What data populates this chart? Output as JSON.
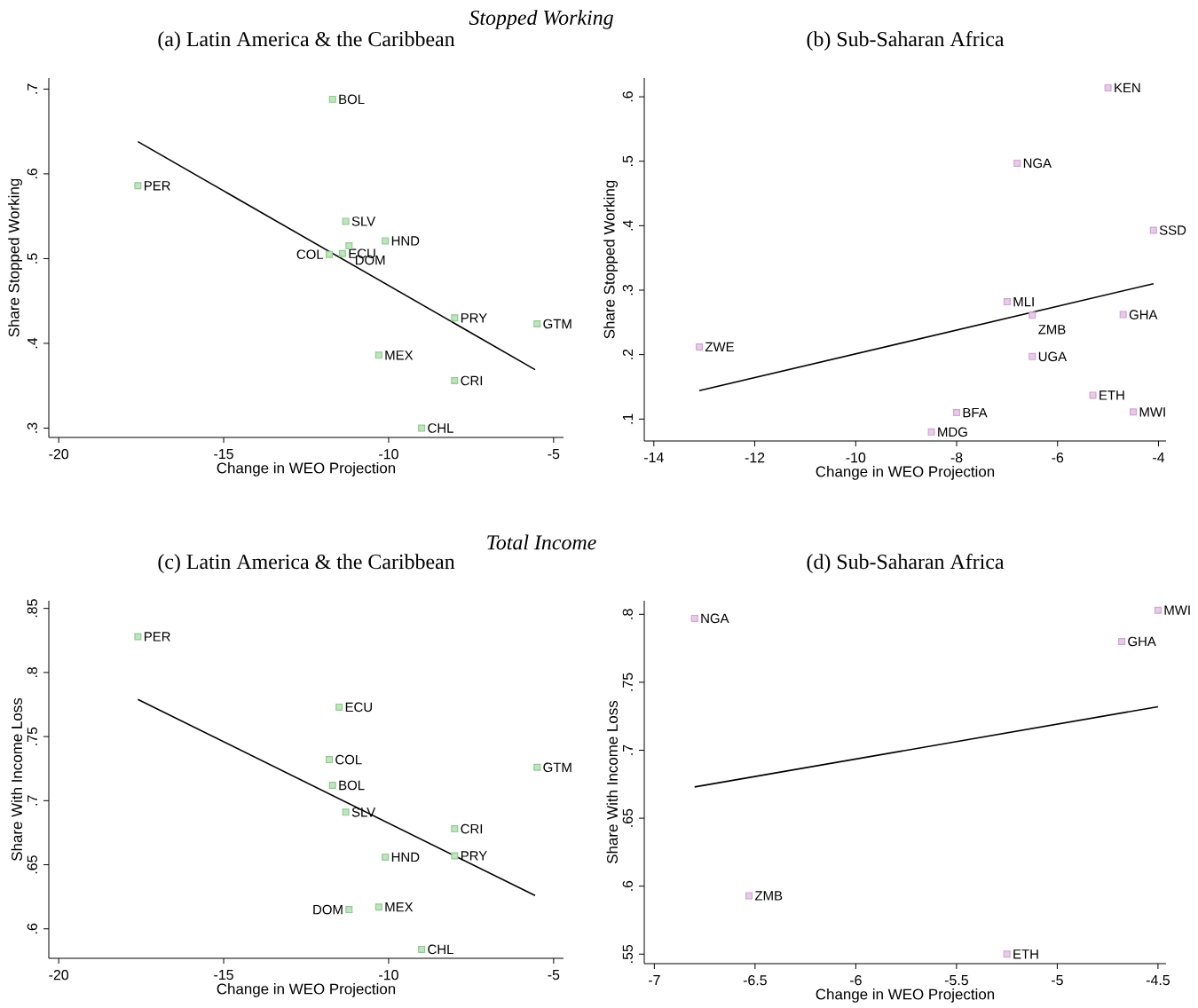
{
  "chart_data": [
    {
      "type": "scatter",
      "title": "(a) Latin America & the Caribbean",
      "xlabel": "Change in WEO Projection",
      "ylabel": "Share Stopped Working",
      "xlim": [
        -20.3,
        -4.7
      ],
      "ylim": [
        0.289,
        0.713
      ],
      "xticks": [
        -20,
        -15,
        -10,
        -5
      ],
      "yticks": [
        {
          "value": 0.3,
          "label": ".3"
        },
        {
          "value": 0.4,
          "label": ".4"
        },
        {
          "value": 0.5,
          "label": ".5"
        },
        {
          "value": 0.6,
          "label": ".6"
        },
        {
          "value": 0.7,
          "label": ".7"
        }
      ],
      "series": [
        {
          "marker": "square",
          "color": "#8fcc8f",
          "x": [
            -11.7,
            -17.6,
            -11.3,
            -11.2,
            -10.1,
            -11.8,
            -11.4,
            -8.0,
            -5.5,
            -10.3,
            -8.0,
            -9.0
          ],
          "values": [
            0.688,
            0.586,
            0.544,
            0.515,
            0.521,
            0.505,
            0.506,
            0.43,
            0.423,
            0.386,
            0.356,
            0.3
          ]
        },
        {
          "type": "line",
          "color": "#000000",
          "x": [
            -17.6,
            -5.56
          ],
          "values": [
            0.638,
            0.369
          ]
        }
      ],
      "annotations": [
        "Stopped Working",
        {
          "text": "BOL",
          "x": -11.7,
          "y": 0.688
        },
        {
          "text": "PER",
          "x": -17.6,
          "y": 0.586
        },
        {
          "text": "SLV",
          "x": -11.3,
          "y": 0.544
        },
        {
          "text": "DOM",
          "x": -11.2,
          "y": 0.515
        },
        {
          "text": "HND",
          "x": -10.1,
          "y": 0.521
        },
        {
          "text": "COL",
          "x": -11.8,
          "y": 0.505
        },
        {
          "text": "ECU",
          "x": -11.4,
          "y": 0.506
        },
        {
          "text": "PRY",
          "x": -8.0,
          "y": 0.43
        },
        {
          "text": "GTM",
          "x": -5.5,
          "y": 0.423
        },
        {
          "text": "MEX",
          "x": -10.3,
          "y": 0.386
        },
        {
          "text": "CRI",
          "x": -8.0,
          "y": 0.356
        },
        {
          "text": "CHL",
          "x": -9.0,
          "y": 0.3
        }
      ]
    },
    {
      "type": "scatter",
      "title": "(b) Sub-Saharan Africa",
      "xlabel": "Change in WEO Projection",
      "ylabel": "Share Stopped Working",
      "xlim": [
        -14.19,
        -3.85
      ],
      "ylim": [
        0.066,
        0.629
      ],
      "xticks": [
        -14,
        -12,
        -10,
        -8,
        -6,
        -4
      ],
      "yticks": [
        {
          "value": 0.1,
          "label": ".1"
        },
        {
          "value": 0.2,
          "label": ".2"
        },
        {
          "value": 0.3,
          "label": ".3"
        },
        {
          "value": 0.4,
          "label": ".4"
        },
        {
          "value": 0.5,
          "label": ".5"
        },
        {
          "value": 0.6,
          "label": ".6"
        }
      ],
      "series": [
        {
          "marker": "square",
          "color": "#d3a3d3",
          "x": [
            -5.0,
            -6.8,
            -4.1,
            -7.0,
            -6.5,
            -4.7,
            -13.1,
            -6.5,
            -5.3,
            -8.0,
            -4.5,
            -8.5
          ],
          "values": [
            0.614,
            0.497,
            0.393,
            0.282,
            0.261,
            0.262,
            0.212,
            0.197,
            0.137,
            0.11,
            0.111,
            0.08
          ]
        },
        {
          "type": "line",
          "color": "#000000",
          "x": [
            -13.1,
            -4.1
          ],
          "values": [
            0.144,
            0.31
          ]
        }
      ],
      "annotations": [
        {
          "text": "KEN",
          "x": -5.0,
          "y": 0.614
        },
        {
          "text": "NGA",
          "x": -6.8,
          "y": 0.497
        },
        {
          "text": "SSD",
          "x": -4.1,
          "y": 0.393
        },
        {
          "text": "MLI",
          "x": -7.0,
          "y": 0.282
        },
        {
          "text": "ZMB",
          "x": -6.5,
          "y": 0.261
        },
        {
          "text": "GHA",
          "x": -4.7,
          "y": 0.262
        },
        {
          "text": "ZWE",
          "x": -13.1,
          "y": 0.212
        },
        {
          "text": "UGA",
          "x": -6.5,
          "y": 0.197
        },
        {
          "text": "ETH",
          "x": -5.3,
          "y": 0.137
        },
        {
          "text": "BFA",
          "x": -8.0,
          "y": 0.11
        },
        {
          "text": "MWI",
          "x": -4.5,
          "y": 0.111
        },
        {
          "text": "MDG",
          "x": -8.5,
          "y": 0.08
        }
      ]
    },
    {
      "type": "scatter",
      "title": "(c) Latin America & the Caribbean",
      "xlabel": "Change in WEO Projection",
      "ylabel": "Share With Income Loss",
      "xlim": [
        -20.3,
        -4.7
      ],
      "ylim": [
        0.577,
        0.856
      ],
      "xticks": [
        -20,
        -15,
        -10,
        -5
      ],
      "yticks": [
        {
          "value": 0.6,
          "label": ".6"
        },
        {
          "value": 0.65,
          "label": ".65"
        },
        {
          "value": 0.7,
          "label": ".7"
        },
        {
          "value": 0.75,
          "label": ".75"
        },
        {
          "value": 0.8,
          "label": ".8"
        },
        {
          "value": 0.85,
          "label": ".85"
        }
      ],
      "series": [
        {
          "marker": "square",
          "color": "#8fcc8f",
          "x": [
            -17.6,
            -11.5,
            -11.8,
            -11.7,
            -11.3,
            -5.5,
            -8.0,
            -10.1,
            -8.0,
            -11.2,
            -10.3,
            -9.0
          ],
          "values": [
            0.828,
            0.773,
            0.732,
            0.712,
            0.691,
            0.726,
            0.678,
            0.656,
            0.657,
            0.615,
            0.617,
            0.584
          ]
        },
        {
          "type": "line",
          "color": "#000000",
          "x": [
            -17.6,
            -5.56
          ],
          "values": [
            0.779,
            0.626
          ]
        }
      ],
      "annotations": [
        "Total Income",
        {
          "text": "PER",
          "x": -17.6,
          "y": 0.828
        },
        {
          "text": "ECU",
          "x": -11.5,
          "y": 0.773
        },
        {
          "text": "COL",
          "x": -11.8,
          "y": 0.732
        },
        {
          "text": "BOL",
          "x": -11.7,
          "y": 0.712
        },
        {
          "text": "SLV",
          "x": -11.3,
          "y": 0.691
        },
        {
          "text": "GTM",
          "x": -5.5,
          "y": 0.726
        },
        {
          "text": "CRI",
          "x": -8.0,
          "y": 0.678
        },
        {
          "text": "HND",
          "x": -10.1,
          "y": 0.656
        },
        {
          "text": "PRY",
          "x": -8.0,
          "y": 0.657
        },
        {
          "text": "DOM",
          "x": -11.2,
          "y": 0.615
        },
        {
          "text": "MEX",
          "x": -10.3,
          "y": 0.617
        },
        {
          "text": "CHL",
          "x": -9.0,
          "y": 0.584
        }
      ]
    },
    {
      "type": "scatter",
      "title": "(d) Sub-Saharan Africa",
      "xlabel": "Change in WEO Projection",
      "ylabel": "Share With Income Loss",
      "xlim": [
        -7.05,
        -4.46
      ],
      "ylim": [
        0.543,
        0.81
      ],
      "xticks": [
        -7,
        -6.5,
        -6,
        -5.5,
        -5,
        -4.5
      ],
      "yticks": [
        {
          "value": 0.55,
          "label": ".55"
        },
        {
          "value": 0.6,
          "label": ".6"
        },
        {
          "value": 0.65,
          "label": ".65"
        },
        {
          "value": 0.7,
          "label": ".7"
        },
        {
          "value": 0.75,
          "label": ".75"
        },
        {
          "value": 0.8,
          "label": ".8"
        }
      ],
      "series": [
        {
          "marker": "square",
          "color": "#d3a3d3",
          "x": [
            -6.8,
            -4.5,
            -4.68,
            -6.53,
            -5.25
          ],
          "values": [
            0.797,
            0.803,
            0.78,
            0.593,
            0.55
          ]
        },
        {
          "type": "line",
          "color": "#000000",
          "x": [
            -6.8,
            -4.5
          ],
          "values": [
            0.673,
            0.732
          ]
        }
      ],
      "annotations": [
        {
          "text": "NGA",
          "x": -6.8,
          "y": 0.797
        },
        {
          "text": "MWI",
          "x": -4.5,
          "y": 0.803
        },
        {
          "text": "GHA",
          "x": -4.68,
          "y": 0.78
        },
        {
          "text": "ZMB",
          "x": -6.53,
          "y": 0.593
        },
        {
          "text": "ETH",
          "x": -5.25,
          "y": 0.55
        }
      ]
    }
  ]
}
